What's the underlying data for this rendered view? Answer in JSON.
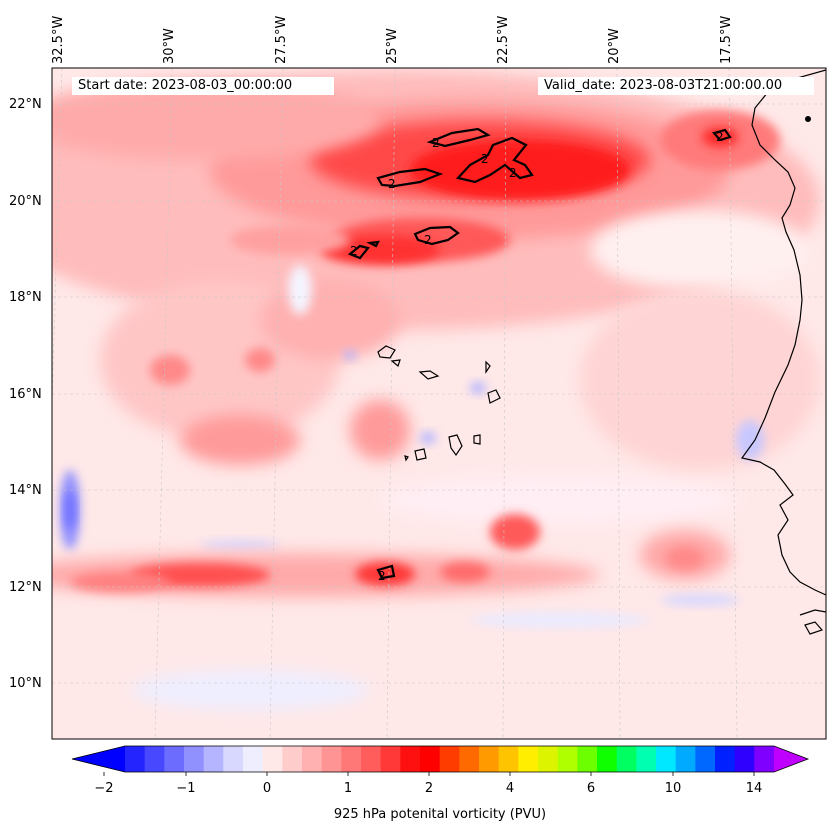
{
  "map": {
    "start_date_label": "Start date: 2023-08-03_00:00:00",
    "valid_date_label": "Valid_date: 2023-08-03T21:00:00.00",
    "lon_labels": [
      "32.5°W",
      "30°W",
      "27.5°W",
      "25°W",
      "22.5°W",
      "20°W",
      "17.5°W"
    ],
    "lat_labels": [
      "22°N",
      "20°N",
      "18°N",
      "16°N",
      "14°N",
      "12°N",
      "10°N"
    ],
    "contour_label": "2",
    "colorbar": {
      "title": "925 hPa potenital vorticity (PVU)",
      "ticks": [
        "−2",
        "−1",
        "0",
        "1",
        "2",
        "4",
        "6",
        "10",
        "14"
      ],
      "colors": [
        "#0000ff",
        "#2424ff",
        "#4848ff",
        "#6c6cff",
        "#9090ff",
        "#b4b4ff",
        "#d8d8ff",
        "#eeeeff",
        "#ffe8e8",
        "#ffcccc",
        "#ffb0b0",
        "#ff9494",
        "#ff7878",
        "#ff5c5c",
        "#ff3838",
        "#ff1010",
        "#ff0000",
        "#ff3c00",
        "#ff6a00",
        "#ff9a00",
        "#ffc400",
        "#ffee00",
        "#ddf400",
        "#b0ff00",
        "#6cff00",
        "#10ff00",
        "#00ff60",
        "#00ffb0",
        "#00e8ff",
        "#00aaff",
        "#0068ff",
        "#0020ff",
        "#3000ff",
        "#8000ff",
        "#c000ff"
      ]
    }
  }
}
